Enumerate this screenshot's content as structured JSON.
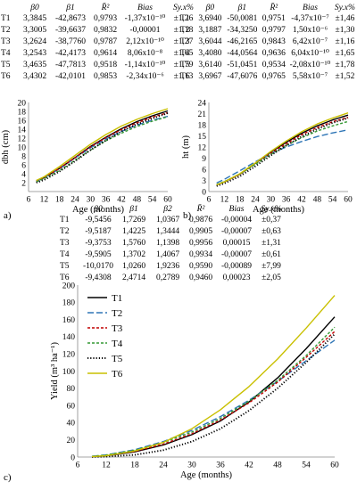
{
  "tables": [
    {
      "headers": [
        "β0",
        "β1",
        "R̄²",
        "Bias",
        "Sy.x%"
      ],
      "rows": [
        [
          "T1",
          "3,3845",
          "-42,8673",
          "0,9793",
          "-1,37x10⁻¹⁰",
          "±1,26"
        ],
        [
          "T2",
          "3,3005",
          "-39,6637",
          "0,9832",
          "-0,00001",
          "±1,18"
        ],
        [
          "T3",
          "3,2624",
          "-38,7760",
          "0,9787",
          "2,12x10⁻¹⁰",
          "±1,27"
        ],
        [
          "T4",
          "3,2543",
          "-42,4173",
          "0,9614",
          "8,06x10⁻⁸",
          "±1,65"
        ],
        [
          "T5",
          "3,4635",
          "-47,7813",
          "0,9518",
          "-1,14x10⁻¹⁰",
          "±1,79"
        ],
        [
          "T6",
          "3,4302",
          "-42,0101",
          "0,9853",
          "-2,34x10⁻⁶",
          "±1,13"
        ]
      ]
    },
    {
      "headers": [
        "β0",
        "β1",
        "R̄²",
        "Bias",
        "Sy.x%"
      ],
      "rows": [
        [
          "T1",
          "3,6940",
          "-50,0081",
          "0,9751",
          "-4,37x10⁻⁷",
          "±1,46"
        ],
        [
          "T2",
          "3,1887",
          "-34,3250",
          "0,9797",
          "1,50x10⁻⁶",
          "±1,30"
        ],
        [
          "T3",
          "3,6044",
          "-46,2165",
          "0,9843",
          "6,42x10⁻⁷",
          "±1,16"
        ],
        [
          "T4",
          "3,4080",
          "-44,0564",
          "0,9636",
          "6,04x10⁻¹⁰",
          "±1,65"
        ],
        [
          "T5",
          "3,6140",
          "-51,0451",
          "0,9534",
          "-2,08x10⁻¹⁰",
          "±1,78"
        ],
        [
          "T6",
          "3,6967",
          "-47,6076",
          "0,9765",
          "5,58x10⁻⁷",
          "±1,52"
        ]
      ]
    },
    {
      "headers": [
        "β0",
        "β1",
        "β2",
        "R̄²",
        "Bias",
        "Sy.x%"
      ],
      "rows": [
        [
          "T1",
          "-9,5456",
          "1,7269",
          "1,0367",
          "0,9876",
          "-0,00004",
          "±0,37"
        ],
        [
          "T2",
          "-9,5187",
          "1,4225",
          "1,3444",
          "0,9905",
          "-0,00007",
          "±0,63"
        ],
        [
          "T3",
          "-9,3753",
          "1,5760",
          "1,1398",
          "0,9956",
          "0,00015",
          "±1,31"
        ],
        [
          "T4",
          "-9,5905",
          "1,3702",
          "1,4067",
          "0,9934",
          "-0,00007",
          "±0,61"
        ],
        [
          "T5",
          "-10,0170",
          "1,0260",
          "1,9236",
          "0,9590",
          "-0,00089",
          "±7,99"
        ],
        [
          "T6",
          "-9,4308",
          "2,4714",
          "0,2789",
          "0,9460",
          "0,00023",
          "±2,05"
        ]
      ]
    }
  ],
  "panels": [
    {
      "letter": "a)"
    },
    {
      "letter": "b)"
    },
    {
      "letter": "c)"
    }
  ],
  "chart_data": [
    {
      "type": "line",
      "xlabel": "Age (months)",
      "ylabel": "dbh (cm)",
      "xlim": [
        6,
        60
      ],
      "ylim": [
        0,
        20
      ],
      "xticks": [
        6,
        12,
        18,
        24,
        30,
        36,
        42,
        48,
        54,
        60
      ],
      "yticks": [
        2,
        4,
        6,
        8,
        10,
        12,
        14,
        16,
        18,
        20
      ],
      "x": [
        9,
        12,
        18,
        24,
        30,
        36,
        42,
        48,
        54,
        60
      ],
      "series": [
        {
          "name": "T1",
          "color": "#000000",
          "dash": "solid",
          "values": [
            2.4,
            3.1,
            5.2,
            7.6,
            10.1,
            12.2,
            14.1,
            15.7,
            17.0,
            18.1
          ]
        },
        {
          "name": "T2",
          "color": "#2e75b6",
          "dash": "long",
          "values": [
            2.3,
            3.1,
            5.1,
            7.5,
            9.8,
            11.8,
            13.5,
            14.9,
            16.0,
            16.9
          ]
        },
        {
          "name": "T3",
          "color": "#c00000",
          "dash": "dash",
          "values": [
            2.3,
            3.1,
            5.2,
            7.6,
            10.0,
            12.1,
            13.9,
            15.4,
            16.7,
            17.7
          ]
        },
        {
          "name": "T4",
          "color": "#339933",
          "dash": "dash",
          "values": [
            2.2,
            2.9,
            4.7,
            7.0,
            9.3,
            11.4,
            13.1,
            14.6,
            15.8,
            16.8
          ]
        },
        {
          "name": "T5",
          "color": "#000000",
          "dash": "dot",
          "values": [
            2.0,
            2.6,
            4.5,
            6.8,
            9.3,
            11.5,
            13.5,
            15.1,
            16.4,
            17.6
          ]
        },
        {
          "name": "T6",
          "color": "#c9c000",
          "dash": "solid",
          "values": [
            2.5,
            3.3,
            5.6,
            8.1,
            10.6,
            12.8,
            14.7,
            16.2,
            17.5,
            18.6
          ]
        }
      ]
    },
    {
      "type": "line",
      "xlabel": "Age (months)",
      "ylabel": "ht (m)",
      "xlim": [
        6,
        60
      ],
      "ylim": [
        0,
        24
      ],
      "xticks": [
        6,
        12,
        18,
        24,
        30,
        36,
        42,
        48,
        54,
        60
      ],
      "yticks": [
        0,
        3,
        6,
        9,
        12,
        15,
        18,
        21,
        24
      ],
      "x": [
        9,
        12,
        18,
        24,
        30,
        36,
        42,
        48,
        54,
        60
      ],
      "series": [
        {
          "name": "T1",
          "color": "#000000",
          "dash": "solid",
          "values": [
            1.8,
            2.6,
            4.7,
            7.6,
            10.6,
            13.3,
            15.7,
            17.7,
            19.3,
            20.6
          ]
        },
        {
          "name": "T2",
          "color": "#2e75b6",
          "dash": "long",
          "values": [
            2.3,
            3.3,
            5.6,
            8.0,
            10.2,
            12.0,
            13.5,
            14.8,
            15.8,
            16.6
          ]
        },
        {
          "name": "T3",
          "color": "#c00000",
          "dash": "dash",
          "values": [
            1.8,
            2.6,
            4.6,
            7.4,
            10.3,
            12.9,
            15.3,
            17.2,
            18.8,
            20.0
          ]
        },
        {
          "name": "T4",
          "color": "#339933",
          "dash": "dash",
          "values": [
            1.9,
            2.7,
            4.7,
            7.3,
            10.0,
            12.4,
            14.5,
            16.3,
            17.7,
            18.9
          ]
        },
        {
          "name": "T5",
          "color": "#000000",
          "dash": "dot",
          "values": [
            1.5,
            2.2,
            4.1,
            6.8,
            9.7,
            12.4,
            14.8,
            16.8,
            18.5,
            19.8
          ]
        },
        {
          "name": "T6",
          "color": "#c9c000",
          "dash": "solid",
          "values": [
            1.8,
            2.6,
            4.8,
            7.7,
            10.8,
            13.6,
            16.1,
            18.2,
            19.8,
            21.2
          ]
        }
      ]
    },
    {
      "type": "line",
      "xlabel": "Age (months)",
      "ylabel": "Yield (m³ ha⁻¹)",
      "xlim": [
        6,
        60
      ],
      "ylim": [
        0,
        200
      ],
      "xticks": [
        6,
        12,
        18,
        24,
        30,
        36,
        42,
        48,
        54,
        60
      ],
      "yticks": [
        0,
        20,
        40,
        60,
        80,
        100,
        120,
        140,
        160,
        180,
        200
      ],
      "legend": "top-left",
      "x": [
        9,
        12,
        18,
        24,
        30,
        36,
        42,
        48,
        54,
        60
      ],
      "series": [
        {
          "name": "T1",
          "color": "#000000",
          "dash": "solid",
          "values": [
            0.4,
            1.5,
            6.0,
            14.0,
            26.0,
            42.0,
            64.0,
            92.0,
            126.0,
            163.0
          ]
        },
        {
          "name": "T2",
          "color": "#2e75b6",
          "dash": "long",
          "values": [
            0.8,
            2.5,
            8.5,
            18.0,
            31.0,
            47.0,
            66.0,
            88.0,
            112.0,
            136.0
          ]
        },
        {
          "name": "T3",
          "color": "#c00000",
          "dash": "dash",
          "values": [
            0.5,
            1.7,
            6.5,
            15.0,
            27.0,
            43.0,
            63.0,
            87.0,
            116.0,
            146.0
          ]
        },
        {
          "name": "T4",
          "color": "#339933",
          "dash": "dash",
          "values": [
            0.8,
            2.4,
            8.0,
            17.0,
            29.0,
            45.0,
            65.0,
            89.0,
            118.0,
            151.0
          ]
        },
        {
          "name": "T5",
          "color": "#000000",
          "dash": "dot",
          "values": [
            0.1,
            0.5,
            2.5,
            8.0,
            18.0,
            33.0,
            54.0,
            80.0,
            110.0,
            143.0
          ]
        },
        {
          "name": "T6",
          "color": "#c9c000",
          "dash": "solid",
          "values": [
            0.4,
            1.6,
            7.0,
            17.0,
            33.0,
            55.0,
            82.0,
            114.0,
            150.0,
            188.0
          ]
        }
      ]
    }
  ]
}
